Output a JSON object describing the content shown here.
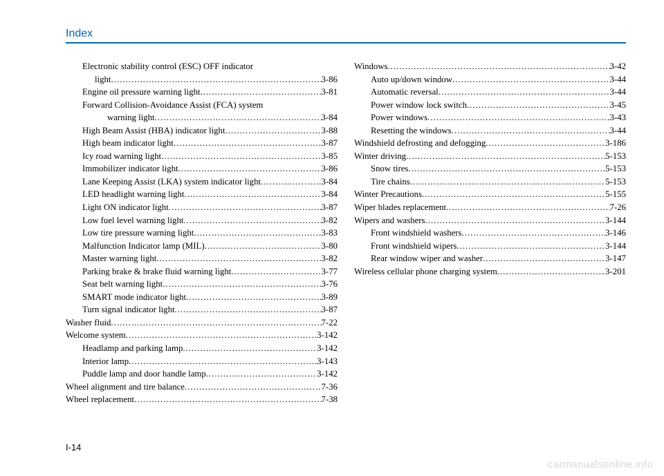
{
  "header": "Index",
  "pageNumber": "I-14",
  "watermark": "carmanualsonline.info",
  "leftCol": [
    {
      "type": "wrap",
      "indent": "sub",
      "line1": "Electronic stability control (ESC) OFF indicator",
      "line2": "light",
      "page": "3-86"
    },
    {
      "indent": "sub",
      "label": "Engine oil pressure warning light ",
      "page": "3-81"
    },
    {
      "type": "wrap",
      "indent": "sub",
      "line1": "Forward Collision-Avoidance Assist (FCA) system",
      "line2": "warning light",
      "page": "3-84",
      "line2indent": 36
    },
    {
      "indent": "sub",
      "label": "High Beam Assist (HBA) indicator light",
      "page": "3-88"
    },
    {
      "indent": "sub",
      "label": "High beam indicator light",
      "page": "3-87"
    },
    {
      "indent": "sub",
      "label": "Icy road warning light",
      "page": "3-85"
    },
    {
      "indent": "sub",
      "label": "Immobilizer indicator light",
      "page": "3-86"
    },
    {
      "indent": "sub",
      "label": "Lane Keeping Assist (LKA) system indicator light",
      "page": "3-84"
    },
    {
      "indent": "sub",
      "label": "LED headlight warning light",
      "page": "3-84"
    },
    {
      "indent": "sub",
      "label": "Light ON indicator light",
      "page": "3-87"
    },
    {
      "indent": "sub",
      "label": "Low fuel level warning light",
      "page": "3-82"
    },
    {
      "indent": "sub",
      "label": "Low tire pressure warning light",
      "page": "3-83"
    },
    {
      "indent": "sub",
      "label": "Malfunction Indicator lamp (MIL)",
      "page": "3-80"
    },
    {
      "indent": "sub",
      "label": "Master warning light",
      "page": "3-82"
    },
    {
      "indent": "sub",
      "label": "Parking brake & brake fluid warning light",
      "page": "3-77"
    },
    {
      "indent": "sub",
      "label": "Seat belt warning light",
      "page": "3-76"
    },
    {
      "indent": "sub",
      "label": "SMART mode indicator light",
      "page": "3-89"
    },
    {
      "indent": "sub",
      "label": "Turn signal indicator light",
      "page": "3-87"
    },
    {
      "indent": "",
      "label": "Washer fluid",
      "page": "7-22"
    },
    {
      "indent": "",
      "label": "Welcome system",
      "page": "3-142"
    },
    {
      "indent": "sub",
      "label": "Headlamp and parking lamp",
      "page": "3-142"
    },
    {
      "indent": "sub",
      "label": "Interior lamp",
      "page": "3-143"
    },
    {
      "indent": "sub",
      "label": "Puddle lamp and door handle lamp",
      "page": "3-142"
    },
    {
      "indent": "",
      "label": "Wheel alignment and tire balance",
      "page": "7-36"
    },
    {
      "indent": "",
      "label": "Wheel replacement",
      "page": "7-38"
    }
  ],
  "rightCol": [
    {
      "indent": "",
      "label": "Windows",
      "page": "3-42"
    },
    {
      "indent": "sub",
      "label": "Auto up/down window",
      "page": "3-44"
    },
    {
      "indent": "sub",
      "label": "Automatic reversal",
      "page": "3-44"
    },
    {
      "indent": "sub",
      "label": "Power window lock switch",
      "page": "3-45"
    },
    {
      "indent": "sub",
      "label": "Power windows",
      "page": "3-43"
    },
    {
      "indent": "sub",
      "label": "Resetting the windows",
      "page": "3-44"
    },
    {
      "indent": "",
      "label": "Windshield defrosting and defogging",
      "page": "3-186"
    },
    {
      "indent": "",
      "label": "Winter driving",
      "page": "5-153"
    },
    {
      "indent": "sub",
      "label": "Snow tires",
      "page": "5-153"
    },
    {
      "indent": "sub",
      "label": "Tire chains",
      "page": "5-153"
    },
    {
      "indent": "",
      "label": "Winter Precautions",
      "page": "5-155"
    },
    {
      "indent": "",
      "label": "Wiper blades replacement",
      "page": "7-26"
    },
    {
      "indent": "",
      "label": "Wipers and washers",
      "page": "3-144"
    },
    {
      "indent": "sub",
      "label": "Front windshield washers",
      "page": "3-146"
    },
    {
      "indent": "sub",
      "label": "Front windshield wipers",
      "page": "3-144"
    },
    {
      "indent": "sub",
      "label": "Rear window wiper and washer",
      "page": "3-147"
    },
    {
      "indent": "",
      "label": "Wireless cellular phone charging system",
      "page": "3-201"
    }
  ]
}
